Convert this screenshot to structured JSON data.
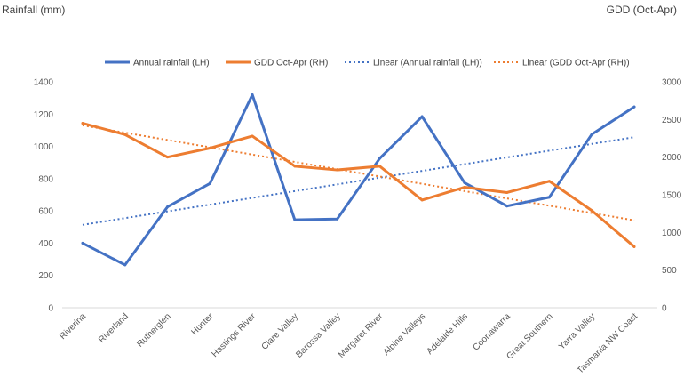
{
  "chart_data": {
    "type": "line",
    "ylabel_left": "Rainfall (mm)",
    "ylabel_right": "GDD (Oct-Apr)",
    "ylim_left": [
      0,
      1400
    ],
    "yticks_left": [
      0,
      200,
      400,
      600,
      800,
      1000,
      1200,
      1400
    ],
    "ylim_right": [
      0,
      3000
    ],
    "yticks_right": [
      0,
      500,
      1000,
      1500,
      2000,
      2500,
      3000
    ],
    "categories": [
      "Riverina",
      "Riverland",
      "Rutherglen",
      "Hunter",
      "Hastings River",
      "Clare Valley",
      "Barossa Valley",
      "Margaret River",
      "Alpine Valleys",
      "Adelaide Hills",
      "Coonawarra",
      "Great Southern",
      "Yarra Valley",
      "Tasmania NW Coast"
    ],
    "series": [
      {
        "name": "Annual rainfall (LH)",
        "axis": "left",
        "color": "#4472C4",
        "values": [
          400,
          265,
          625,
          770,
          1320,
          545,
          550,
          925,
          1185,
          775,
          630,
          685,
          1075,
          1245
        ]
      },
      {
        "name": "GDD Oct-Apr (RH)",
        "axis": "right",
        "color": "#ED7D31",
        "values": [
          2450,
          2300,
          2000,
          2120,
          2280,
          1880,
          1830,
          1880,
          1430,
          1600,
          1530,
          1680,
          1290,
          810
        ]
      }
    ],
    "trendlines": [
      {
        "name": "Linear (Annual rainfall (LH))",
        "of_series": 0,
        "axis": "left",
        "color": "#4472C4"
      },
      {
        "name": "Linear (GDD Oct-Apr (RH))",
        "of_series": 1,
        "axis": "right",
        "color": "#ED7D31"
      }
    ],
    "legend": "top",
    "grid": false
  }
}
